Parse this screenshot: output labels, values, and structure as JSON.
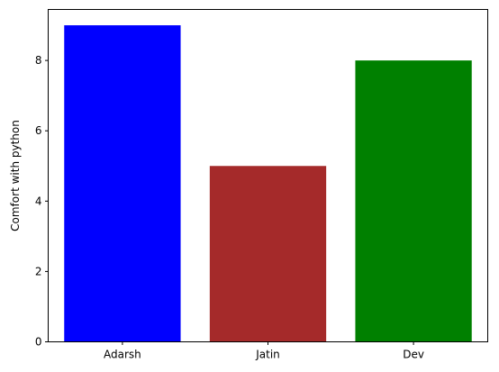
{
  "chart_data": {
    "type": "bar",
    "title": "",
    "xlabel": "",
    "ylabel": "Comfort with python",
    "categories": [
      "Adarsh",
      "Jatin",
      "Dev"
    ],
    "values": [
      9,
      5,
      8
    ],
    "colors": [
      "#0000ff",
      "#a52a2a",
      "#008000"
    ],
    "ylim": [
      0,
      9.45
    ],
    "yticks": [
      0,
      2,
      4,
      6,
      8
    ],
    "grid": false,
    "legend": "none"
  }
}
